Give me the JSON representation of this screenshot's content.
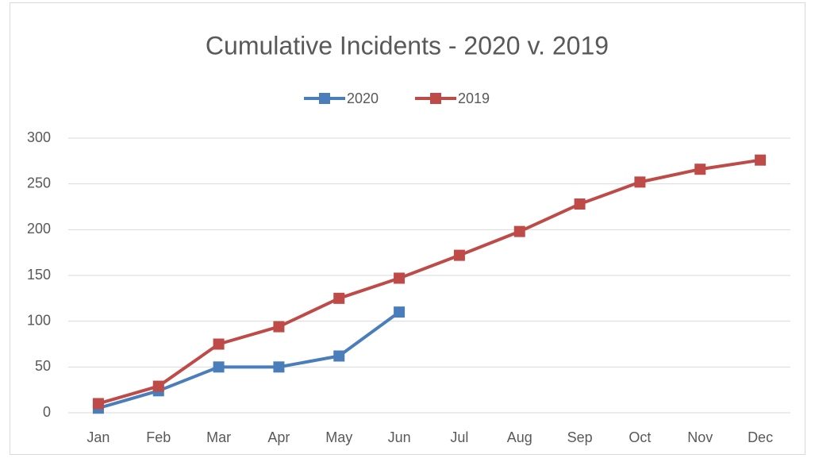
{
  "chart_data": {
    "type": "line",
    "title": "Cumulative Incidents - 2020 v. 2019",
    "categories": [
      "Jan",
      "Feb",
      "Mar",
      "Apr",
      "May",
      "Jun",
      "Jul",
      "Aug",
      "Sep",
      "Oct",
      "Nov",
      "Dec"
    ],
    "series": [
      {
        "name": "2020",
        "color": "#4a7ebb",
        "values": [
          5,
          24,
          50,
          50,
          62,
          110,
          null,
          null,
          null,
          null,
          null,
          null
        ]
      },
      {
        "name": "2019",
        "color": "#be4b48",
        "values": [
          10,
          29,
          75,
          94,
          125,
          147,
          172,
          198,
          228,
          252,
          266,
          276
        ]
      }
    ],
    "ylim": [
      0,
      300
    ],
    "yticks": [
      0,
      50,
      100,
      150,
      200,
      250,
      300
    ],
    "grid": true,
    "legend": "top"
  }
}
